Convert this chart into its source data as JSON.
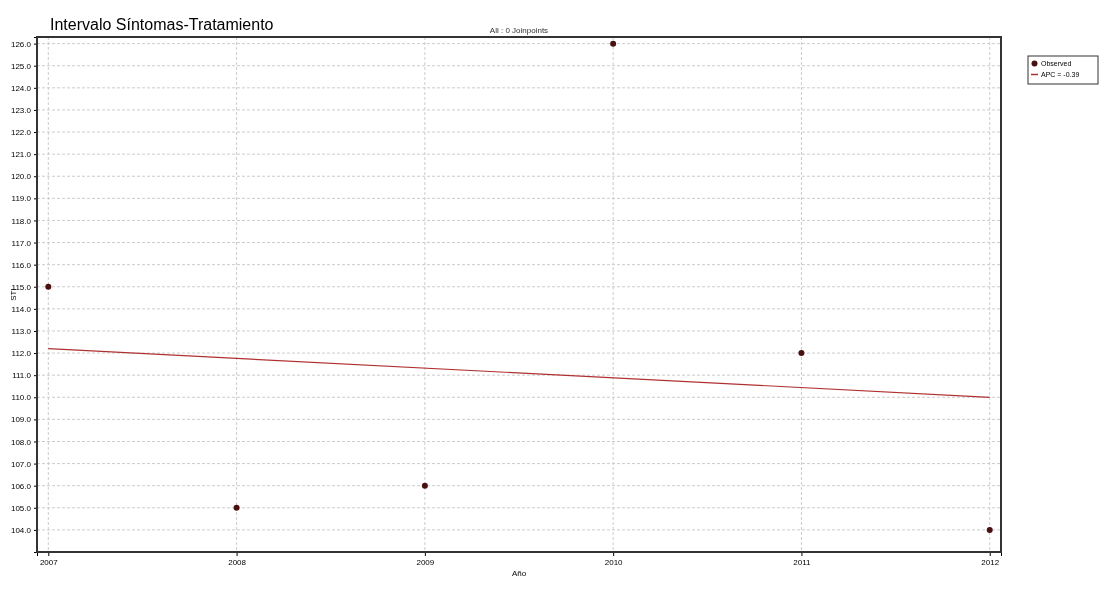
{
  "chart_data": {
    "type": "scatter",
    "title": "Intervalo Síntomas-Tratamiento",
    "subtitle": "All : 0 Joinpoints",
    "xlabel": "Año",
    "ylabel": "STI",
    "x": [
      2007,
      2008,
      2009,
      2010,
      2011,
      2012
    ],
    "series": [
      {
        "name": "Observed",
        "color": "#4a1010",
        "marker": "circle",
        "values": [
          115,
          105,
          106,
          126,
          112,
          104
        ]
      },
      {
        "name": "APC = -0.39",
        "type": "line",
        "color": "#b03030",
        "marker": "none",
        "x": [
          2007,
          2012
        ],
        "values": [
          112.2,
          110.0
        ]
      }
    ],
    "xlim": [
      2006.94,
      2012.06
    ],
    "xticks": [
      2007,
      2008,
      2009,
      2010,
      2011,
      2012
    ],
    "ylim": [
      103.0,
      126.3
    ],
    "yticks": [
      {
        "value": 104,
        "label": "104.0"
      },
      {
        "value": 105,
        "label": "105.0"
      },
      {
        "value": 106,
        "label": "106.0"
      },
      {
        "value": 107,
        "label": "107.0"
      },
      {
        "value": 108,
        "label": "108.0"
      },
      {
        "value": 109,
        "label": "109.0"
      },
      {
        "value": 110,
        "label": "110.0"
      },
      {
        "value": 111,
        "label": "111.0"
      },
      {
        "value": 112,
        "label": "112.0"
      },
      {
        "value": 113,
        "label": "113.0"
      },
      {
        "value": 114,
        "label": "114.0"
      },
      {
        "value": 115,
        "label": "115.0"
      },
      {
        "value": 116,
        "label": "116.0"
      },
      {
        "value": 117,
        "label": "117.0"
      },
      {
        "value": 118,
        "label": "118.0"
      },
      {
        "value": 119,
        "label": "119.0"
      },
      {
        "value": 120,
        "label": "120.0"
      },
      {
        "value": 121,
        "label": "121.0"
      },
      {
        "value": 122,
        "label": "122.0"
      },
      {
        "value": 123,
        "label": "123.0"
      },
      {
        "value": 124,
        "label": "124.0"
      },
      {
        "value": 125,
        "label": "125.0"
      },
      {
        "value": 126,
        "label": "126.0"
      }
    ],
    "grid": true,
    "legend": "top right"
  }
}
